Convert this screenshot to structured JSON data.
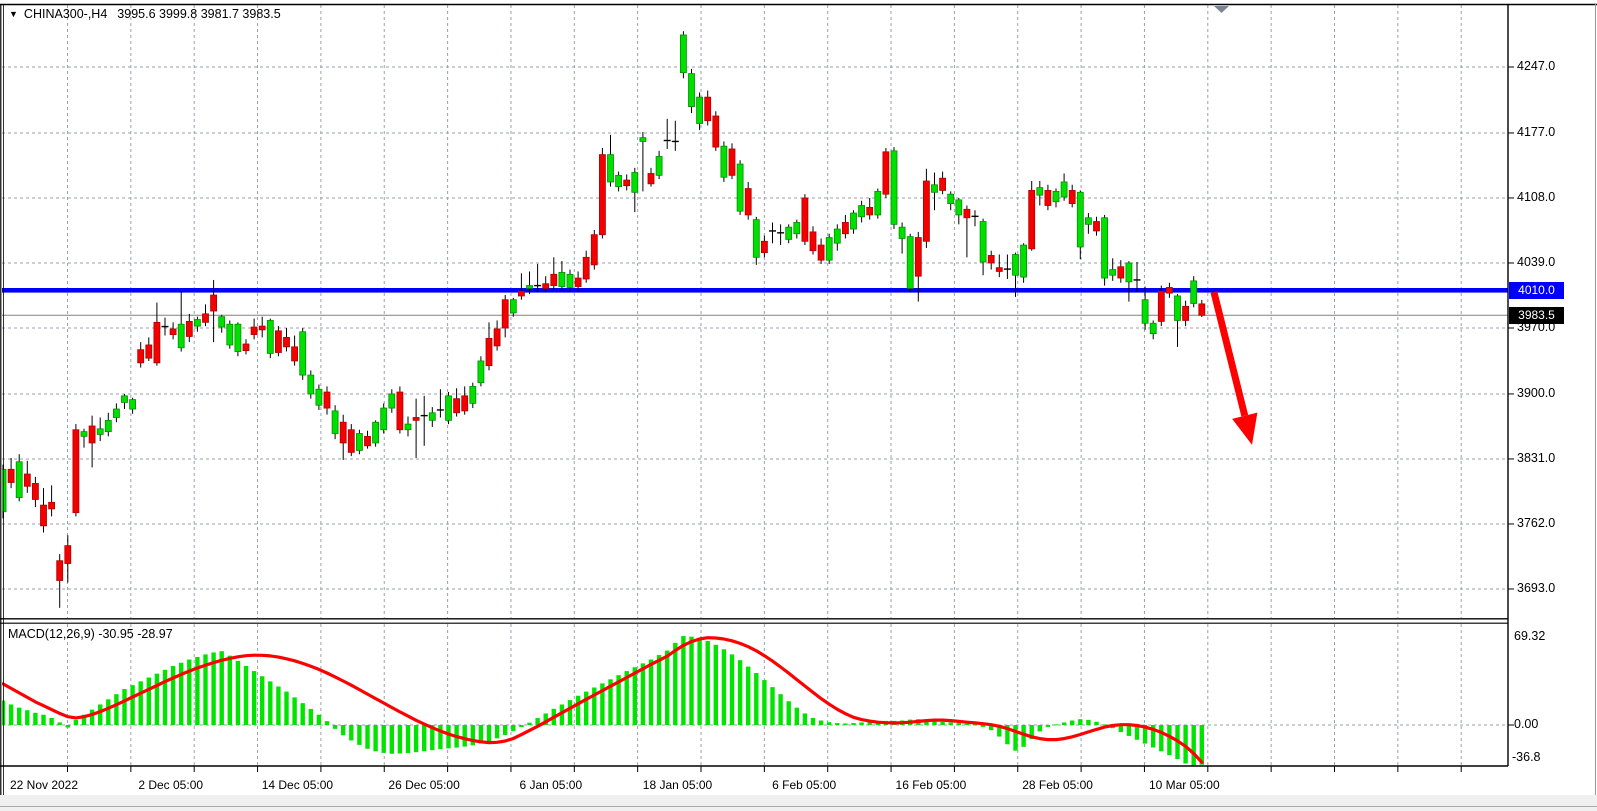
{
  "title": {
    "symbol": "CHINA300-,H4",
    "ohlc": "3995.6 3999.8 3981.7 3983.5",
    "dropdown_icon": "▼"
  },
  "price_axis": {
    "tick_labels": [
      "4247.0",
      "4177.0",
      "4108.0",
      "4039.0",
      "3970.0",
      "3900.0",
      "3831.0",
      "3762.0",
      "3693.0"
    ],
    "tick_values": [
      4247,
      4177,
      4108,
      4039,
      3970,
      3900,
      3831,
      3762,
      3693
    ],
    "current_badge": {
      "text": "4010.0",
      "color": "#0000ff",
      "price": 4010
    },
    "last_badge": {
      "text": "3983.5",
      "color": "#000000",
      "price": 3983.5
    }
  },
  "time_axis": {
    "labels": [
      "22 Nov 2022",
      "2 Dec 05:00",
      "14 Dec 05:00",
      "26 Dec 05:00",
      "6 Jan 05:00",
      "18 Jan 05:00",
      "6 Feb 05:00",
      "16 Feb 05:00",
      "28 Feb 05:00",
      "10 Mar 05:00"
    ]
  },
  "macd_panel": {
    "label": "MACD(12,26,9) -30.95 -28.97",
    "max_label": "69.32",
    "zero_label": "0.00",
    "min_label": "-36.8"
  },
  "colors": {
    "bull": "#00e000",
    "bull_stroke": "#009000",
    "bear": "#f40000",
    "bear_stroke": "#b00000",
    "wick": "#000000",
    "grid": "#98a2ac",
    "blue_line": "#0000ff",
    "last_line": "#808080",
    "macd_bar": "#00e400",
    "macd_signal": "#ff0000",
    "arrow": "#ff0000",
    "shift_marker": "#7a8696"
  },
  "chart_data": {
    "type": "candlestick",
    "symbol": "CHINA300-",
    "timeframe": "H4",
    "y_axis_range": [
      3660,
      4310
    ],
    "x_labels": [
      "22 Nov 2022",
      "2 Dec 05:00",
      "14 Dec 05:00",
      "26 Dec 05:00",
      "6 Jan 05:00",
      "18 Jan 05:00",
      "6 Feb 05:00",
      "16 Feb 05:00",
      "28 Feb 05:00",
      "10 Mar 05:00"
    ],
    "candles_ohlc": [
      [
        3775,
        3825,
        3768,
        3820
      ],
      [
        3820,
        3832,
        3800,
        3806
      ],
      [
        3790,
        3836,
        3786,
        3828
      ],
      [
        3815,
        3829,
        3795,
        3802
      ],
      [
        3805,
        3812,
        3780,
        3788
      ],
      [
        3782,
        3800,
        3753,
        3760
      ],
      [
        3785,
        3803,
        3770,
        3778
      ],
      [
        3723,
        3730,
        3673,
        3702
      ],
      [
        3739,
        3750,
        3700,
        3720
      ],
      [
        3862,
        3868,
        3770,
        3774
      ],
      [
        3855,
        3863,
        3843,
        3860
      ],
      [
        3866,
        3877,
        3822,
        3848
      ],
      [
        3857,
        3875,
        3850,
        3863
      ],
      [
        3860,
        3880,
        3855,
        3872
      ],
      [
        3875,
        3890,
        3870,
        3884
      ],
      [
        3891,
        3900,
        3884,
        3898
      ],
      [
        3884,
        3896,
        3879,
        3894
      ],
      [
        3947,
        3955,
        3928,
        3933
      ],
      [
        3952,
        3960,
        3935,
        3938
      ],
      [
        3976,
        3997,
        3930,
        3933
      ],
      [
        3972,
        3981,
        3962,
        3971
      ],
      [
        3969,
        3976,
        3958,
        3963
      ],
      [
        3949,
        4009,
        3945,
        3974
      ],
      [
        3977,
        3985,
        3955,
        3961
      ],
      [
        3972,
        3982,
        3966,
        3979
      ],
      [
        3985,
        3995,
        3972,
        3976
      ],
      [
        4005,
        4021,
        3955,
        3988
      ],
      [
        3971,
        3984,
        3965,
        3982
      ],
      [
        3952,
        3978,
        3948,
        3974
      ],
      [
        3945,
        3976,
        3940,
        3974
      ],
      [
        3953,
        3958,
        3942,
        3946
      ],
      [
        3971,
        3980,
        3958,
        3963
      ],
      [
        3972,
        3982,
        3960,
        3968
      ],
      [
        3943,
        3980,
        3938,
        3978
      ],
      [
        3967,
        3972,
        3940,
        3944
      ],
      [
        3960,
        3970,
        3945,
        3950
      ],
      [
        3950,
        3962,
        3930,
        3935
      ],
      [
        3920,
        3970,
        3915,
        3966
      ],
      [
        3900,
        3925,
        3895,
        3920
      ],
      [
        3888,
        3910,
        3883,
        3905
      ],
      [
        3902,
        3908,
        3878,
        3885
      ],
      [
        3858,
        3888,
        3852,
        3882
      ],
      [
        3870,
        3878,
        3830,
        3848
      ],
      [
        3862,
        3868,
        3834,
        3838
      ],
      [
        3840,
        3862,
        3836,
        3858
      ],
      [
        3855,
        3861,
        3842,
        3845
      ],
      [
        3848,
        3872,
        3844,
        3870
      ],
      [
        3862,
        3890,
        3858,
        3885
      ],
      [
        3885,
        3905,
        3880,
        3900
      ],
      [
        3902,
        3908,
        3858,
        3862
      ],
      [
        3862,
        3876,
        3855,
        3868
      ],
      [
        3875,
        3895,
        3832,
        3872
      ],
      [
        3878,
        3898,
        3845,
        3876
      ],
      [
        3872,
        3886,
        3865,
        3880
      ],
      [
        3882,
        3905,
        3875,
        3884
      ],
      [
        3872,
        3902,
        3868,
        3898
      ],
      [
        3895,
        3906,
        3876,
        3880
      ],
      [
        3898,
        3908,
        3878,
        3882
      ],
      [
        3890,
        3912,
        3885,
        3908
      ],
      [
        3912,
        3940,
        3908,
        3935
      ],
      [
        3959,
        3976,
        3925,
        3930
      ],
      [
        3969,
        3978,
        3946,
        3951
      ],
      [
        4000,
        4005,
        3960,
        3970
      ],
      [
        3986,
        4002,
        3982,
        4000
      ],
      [
        4009,
        4028,
        4000,
        4004
      ],
      [
        4012,
        4030,
        4006,
        4015
      ],
      [
        4014,
        4038,
        4008,
        4016
      ],
      [
        4017,
        4025,
        4008,
        4012
      ],
      [
        4027,
        4045,
        4010,
        4015
      ],
      [
        4014,
        4041,
        4010,
        4029
      ],
      [
        4013,
        4032,
        4008,
        4027
      ],
      [
        4023,
        4030,
        4008,
        4014
      ],
      [
        4045,
        4052,
        4018,
        4022
      ],
      [
        4069,
        4074,
        4032,
        4037
      ],
      [
        4154,
        4161,
        4065,
        4069
      ],
      [
        4125,
        4175,
        4120,
        4154
      ],
      [
        4120,
        4136,
        4115,
        4132
      ],
      [
        4127,
        4133,
        4116,
        4121
      ],
      [
        4114,
        4140,
        4093,
        4135
      ],
      [
        4168,
        4178,
        4115,
        4172
      ],
      [
        4134,
        4140,
        4120,
        4123
      ],
      [
        4132,
        4158,
        4128,
        4152
      ],
      [
        4168,
        4192,
        4160,
        4170
      ],
      [
        4167,
        4190,
        4158,
        4169
      ],
      [
        4241,
        4285,
        4235,
        4281
      ],
      [
        4205,
        4245,
        4198,
        4240
      ],
      [
        4187,
        4220,
        4180,
        4215
      ],
      [
        4215,
        4222,
        4185,
        4190
      ],
      [
        4195,
        4200,
        4158,
        4162
      ],
      [
        4130,
        4168,
        4125,
        4163
      ],
      [
        4160,
        4166,
        4128,
        4132
      ],
      [
        4094,
        4148,
        4090,
        4144
      ],
      [
        4118,
        4125,
        4085,
        4090
      ],
      [
        4045,
        4088,
        4037,
        4085
      ],
      [
        4062,
        4068,
        4045,
        4050
      ],
      [
        4072,
        4082,
        4060,
        4074
      ],
      [
        4070,
        4080,
        4058,
        4072
      ],
      [
        4064,
        4080,
        4060,
        4077
      ],
      [
        4070,
        4085,
        4065,
        4082
      ],
      [
        4108,
        4112,
        4058,
        4062
      ],
      [
        4072,
        4078,
        4048,
        4052
      ],
      [
        4058,
        4065,
        4038,
        4042
      ],
      [
        4042,
        4070,
        4038,
        4066
      ],
      [
        4060,
        4080,
        4052,
        4075
      ],
      [
        4082,
        4090,
        4065,
        4070
      ],
      [
        4075,
        4095,
        4070,
        4092
      ],
      [
        4088,
        4105,
        4082,
        4100
      ],
      [
        4098,
        4108,
        4085,
        4090
      ],
      [
        4090,
        4118,
        4086,
        4115
      ],
      [
        4157,
        4161,
        4108,
        4112
      ],
      [
        4080,
        4162,
        4075,
        4158
      ],
      [
        4065,
        4082,
        4049,
        4077
      ],
      [
        4012,
        4070,
        4008,
        4067
      ],
      [
        4066,
        4072,
        3998,
        4025
      ],
      [
        4126,
        4139,
        4055,
        4062
      ],
      [
        4114,
        4135,
        4095,
        4122
      ],
      [
        4129,
        4136,
        4112,
        4116
      ],
      [
        4102,
        4115,
        4095,
        4112
      ],
      [
        4090,
        4108,
        4080,
        4106
      ],
      [
        4096,
        4100,
        4045,
        4087
      ],
      [
        4088,
        4095,
        4078,
        4089
      ],
      [
        4040,
        4086,
        4026,
        4083
      ],
      [
        4047,
        4052,
        4032,
        4039
      ],
      [
        4034,
        4048,
        4024,
        4030
      ],
      [
        4032,
        4048,
        4022,
        4033
      ],
      [
        4026,
        4050,
        4003,
        4048
      ],
      [
        4024,
        4060,
        4018,
        4058
      ],
      [
        4116,
        4126,
        4052,
        4054
      ],
      [
        4111,
        4126,
        4100,
        4119
      ],
      [
        4116,
        4122,
        4095,
        4100
      ],
      [
        4104,
        4118,
        4098,
        4115
      ],
      [
        4109,
        4134,
        4105,
        4125
      ],
      [
        4116,
        4122,
        4098,
        4102
      ],
      [
        4056,
        4116,
        4043,
        4114
      ],
      [
        4080,
        4092,
        4070,
        4087
      ],
      [
        4083,
        4088,
        4068,
        4073
      ],
      [
        4023,
        4090,
        4015,
        4087
      ],
      [
        4026,
        4044,
        4020,
        4032
      ],
      [
        4035,
        4042,
        4018,
        4023
      ],
      [
        4019,
        4041,
        3998,
        4039
      ],
      [
        4020,
        4040,
        4008,
        4022
      ],
      [
        3975,
        4014,
        3968,
        4000
      ],
      [
        3964,
        3978,
        3958,
        3975
      ],
      [
        4009,
        4015,
        3972,
        3977
      ],
      [
        4013,
        4018,
        4002,
        4007
      ],
      [
        3978,
        4006,
        3950,
        4004
      ],
      [
        3993,
        3999,
        3972,
        3978
      ],
      [
        3996,
        4025,
        3992,
        4020
      ],
      [
        3995.6,
        3999.8,
        3981.7,
        3983.5
      ]
    ],
    "indicators": {
      "horizontal_line": {
        "price": 4010,
        "color": "#0000ff"
      },
      "last_price_line": {
        "price": 3983.5,
        "color": "#808080"
      },
      "trend_arrow": {
        "direction": "down",
        "color": "#ff0000",
        "start": {
          "bar": 149.5,
          "price": 4008
        },
        "end": {
          "bar": 154.2,
          "price": 3846
        }
      },
      "macd": {
        "params": "12,26,9",
        "main_value": -30.95,
        "signal_value": -28.97,
        "scale_max": 69.32,
        "scale_min": -36.8,
        "histogram": [
          19,
          16,
          13.5,
          11.5,
          9.5,
          8,
          5.5,
          2,
          -2,
          4,
          8,
          12,
          16,
          20,
          24,
          28,
          31,
          34,
          37,
          40,
          43,
          46,
          48.5,
          51,
          53,
          55,
          56.5,
          57.5,
          54,
          50,
          46,
          42,
          38,
          34,
          30,
          26,
          21.5,
          17,
          12.5,
          8,
          3,
          -3,
          -8,
          -12,
          -15.5,
          -18.5,
          -20.5,
          -21.7,
          -22.4,
          -22.2,
          -21.8,
          -21.2,
          -20.4,
          -19.6,
          -18.8,
          -18.2,
          -17.6,
          -16.8,
          -15.8,
          -14.4,
          -12.6,
          -10.4,
          -7.8,
          -4.8,
          -1.6,
          1.8,
          5.4,
          9,
          12.6,
          16,
          19.4,
          22.8,
          26,
          29.2,
          32.4,
          35.6,
          38.8,
          42,
          45,
          48,
          51,
          54.5,
          58,
          64,
          69.3,
          68.8,
          67.5,
          65.5,
          62.5,
          59,
          55,
          50.5,
          45.5,
          40.5,
          35,
          29.5,
          24,
          18.5,
          13.5,
          9,
          5.5,
          3.5,
          2.2,
          1.5,
          1.2,
          1.5,
          2,
          2.5,
          3,
          3.2,
          3.2,
          3.5,
          4.2,
          4.5,
          4,
          3.2,
          2.5,
          2,
          1.5,
          1,
          0.5,
          -1.5,
          -4,
          -9,
          -15,
          -20,
          -17,
          -11,
          -5,
          -1.5,
          0.5,
          2,
          3.5,
          4.5,
          4,
          2.5,
          0.5,
          -2.5,
          -5.5,
          -8.5,
          -11.5,
          -14.5,
          -17.5,
          -20.5,
          -23.5,
          -26.5,
          -30,
          -36.8,
          -30.95
        ],
        "signal": [
          32,
          28.5,
          25,
          21.5,
          18,
          15,
          12,
          9,
          6.5,
          5.5,
          6.5,
          8.2,
          10.4,
          13,
          15.8,
          18.8,
          21.8,
          24.8,
          27.8,
          30.8,
          33.8,
          36.6,
          39.4,
          42,
          44.4,
          46.6,
          48.6,
          50.4,
          51.9,
          53.1,
          54,
          54.4,
          54.3,
          53.8,
          52.9,
          51.6,
          50,
          48,
          45.8,
          43.3,
          40.5,
          37.5,
          34.3,
          31,
          27.6,
          24.1,
          20.6,
          17.1,
          13.6,
          10.2,
          6.9,
          3.7,
          0.7,
          -2.1,
          -4.7,
          -7,
          -9,
          -10.7,
          -12.1,
          -13.1,
          -13.7,
          -13.5,
          -12.5,
          -10.5,
          -7.5,
          -4.2,
          -1,
          2.5,
          6,
          9.5,
          13,
          16.5,
          20,
          23.4,
          26.8,
          30.2,
          33.6,
          37,
          40.4,
          43.8,
          47.2,
          50.4,
          53.6,
          58,
          62,
          65,
          67,
          68,
          67.8,
          67,
          65.6,
          63.6,
          61,
          57.8,
          54,
          49.8,
          45.2,
          40.4,
          35.4,
          30.4,
          25.4,
          20.6,
          16.2,
          12.2,
          8.8,
          6,
          4.2,
          3,
          2.2,
          1.8,
          1.6,
          1.8,
          2.2,
          2.8,
          3.4,
          3.8,
          3.8,
          3.4,
          2.8,
          2.2,
          1.6,
          1,
          0.2,
          -1,
          -2.8,
          -5,
          -7.2,
          -9.2,
          -10.6,
          -11.4,
          -11.4,
          -10.6,
          -9.2,
          -7.4,
          -5.4,
          -3.4,
          -1.6,
          -0.4,
          0.2,
          0.2,
          -0.4,
          -1.6,
          -3.4,
          -5.8,
          -8.8,
          -12.4,
          -16.6,
          -22.2,
          -28.97
        ]
      }
    }
  }
}
